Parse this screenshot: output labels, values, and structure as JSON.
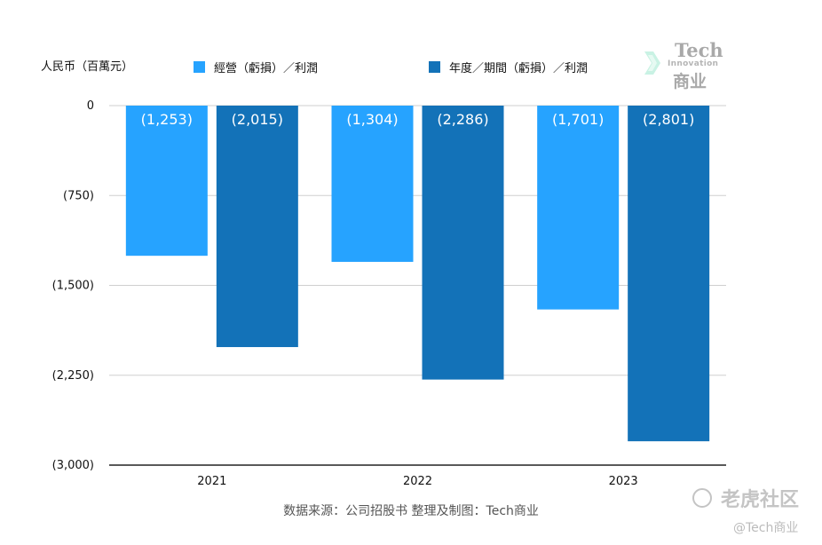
{
  "header": {
    "unit_label": "人民币（百萬元）",
    "legend": [
      {
        "label": "經營（虧損）／利潤",
        "color": "#26a3ff"
      },
      {
        "label": "年度／期間（虧損）／利潤",
        "color": "#1372b8"
      }
    ]
  },
  "logo": {
    "line1": "Tech",
    "line2": "Innovation",
    "line3": "商业"
  },
  "footer": {
    "source": "数据来源：公司招股书  整理及制图：Tech商业",
    "watermark": "老虎社区",
    "handle": "@Tech商业"
  },
  "chart_data": {
    "type": "bar",
    "categories": [
      "2021",
      "2022",
      "2023"
    ],
    "series": [
      {
        "name": "經營（虧損）／利潤",
        "values": [
          -1253,
          -1304,
          -1701
        ],
        "labels": [
          "(1,253)",
          "(1,304)",
          "(1,701)"
        ],
        "color": "#26a3ff"
      },
      {
        "name": "年度／期間（虧損）／利潤",
        "values": [
          -2015,
          -2286,
          -2801
        ],
        "labels": [
          "(2,015)",
          "(2,286)",
          "(2,801)"
        ],
        "color": "#1372b8"
      }
    ],
    "y_ticks": [
      {
        "value": 0,
        "label": "0"
      },
      {
        "value": -750,
        "label": "(750)"
      },
      {
        "value": -1500,
        "label": "(1,500)"
      },
      {
        "value": -2250,
        "label": "(2,250)"
      },
      {
        "value": -3000,
        "label": "(3,000)"
      }
    ],
    "ylim": [
      -3000,
      0
    ],
    "grid": true,
    "legend_position": "top"
  }
}
